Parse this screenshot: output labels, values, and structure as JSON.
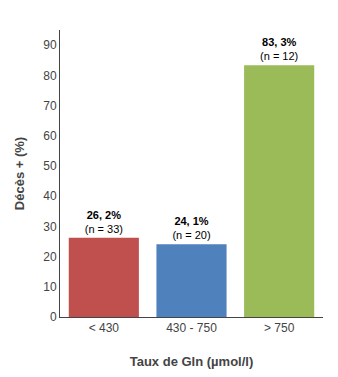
{
  "chart_data": {
    "type": "bar",
    "categories": [
      "< 430",
      "430 - 750",
      "> 750"
    ],
    "values": [
      26.2,
      24.1,
      83.3
    ],
    "value_labels": [
      "26, 2%",
      "24, 1%",
      "83, 3%"
    ],
    "data_labels": true,
    "annotations": [
      "(n = 33)",
      "(n = 20)",
      "(n = 12)"
    ],
    "colors": [
      "#c0504d",
      "#4f81bd",
      "#9bbb59"
    ],
    "xlabel": "Taux de Gln (µmol/l)",
    "ylabel": "Décès + (%)",
    "ylim": [
      0,
      95
    ],
    "yticks": [
      0,
      10,
      20,
      30,
      40,
      50,
      60,
      70,
      80,
      90
    ],
    "grid": false
  }
}
